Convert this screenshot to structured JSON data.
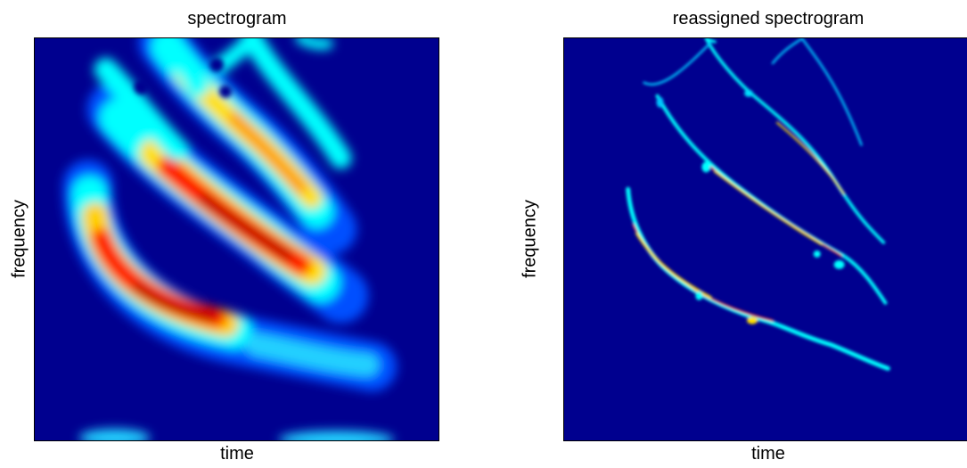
{
  "chart_data": [
    {
      "type": "heatmap",
      "title": "spectrogram",
      "xlabel": "time",
      "ylabel": "frequency",
      "colormap": "jet",
      "background": "#00008f",
      "xticks": [],
      "yticks": [],
      "grid": false,
      "legend": false
    },
    {
      "type": "heatmap",
      "title": "reassigned spectrogram",
      "xlabel": "time",
      "ylabel": "frequency",
      "colormap": "jet",
      "background": "#00008f",
      "xticks": [],
      "yticks": [],
      "grid": false,
      "legend": false
    }
  ],
  "colors": {
    "jet_dark_blue": "#00008f",
    "jet_blue": "#0040ff",
    "jet_cyan": "#00ffff",
    "jet_yellow": "#ffff00",
    "jet_orange": "#ff8000",
    "jet_red": "#ff0000",
    "jet_dark_red": "#800000"
  }
}
